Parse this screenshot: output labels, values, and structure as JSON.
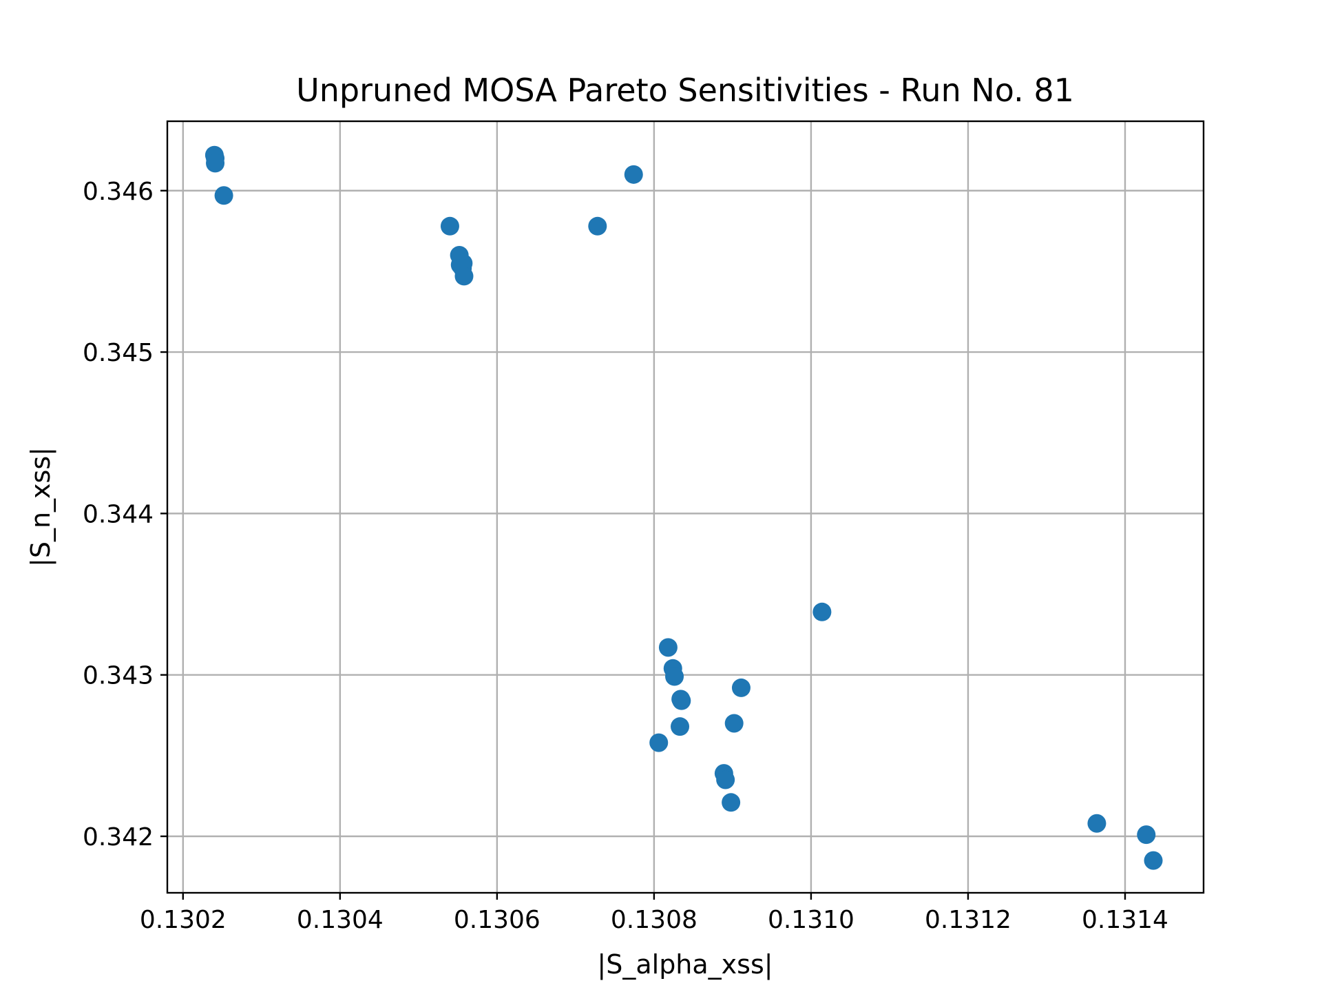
{
  "chart_data": {
    "type": "scatter",
    "title": "Unpruned MOSA Pareto Sensitivities - Run No. 81",
    "xlabel": "|S_alpha_xss|",
    "ylabel": "|S_n_xss|",
    "xlim": [
      0.13018,
      0.1315
    ],
    "ylim": [
      0.34165,
      0.34643
    ],
    "xticks": [
      0.1302,
      0.1304,
      0.1306,
      0.1308,
      0.131,
      0.1312,
      0.1314
    ],
    "xtick_labels": [
      "0.1302",
      "0.1304",
      "0.1306",
      "0.1308",
      "0.1310",
      "0.1312",
      "0.1314"
    ],
    "yticks": [
      0.342,
      0.343,
      0.344,
      0.345,
      0.346
    ],
    "ytick_labels": [
      "0.342",
      "0.343",
      "0.344",
      "0.345",
      "0.346"
    ],
    "grid": true,
    "marker_color": "#1f77b4",
    "series": [
      {
        "x": [
          0.13024,
          0.130241,
          0.130241,
          0.130252,
          0.13054,
          0.130552,
          0.130553,
          0.130557,
          0.130556,
          0.130558,
          0.130728,
          0.130774,
          0.130806,
          0.130818,
          0.130824,
          0.130826,
          0.130834,
          0.130835,
          0.130833,
          0.130889,
          0.130891,
          0.130898,
          0.130902,
          0.130911,
          0.131014,
          0.131364,
          0.131427,
          0.131436
        ],
        "y": [
          0.34622,
          0.3462,
          0.34617,
          0.34597,
          0.34578,
          0.3456,
          0.34554,
          0.34555,
          0.34552,
          0.34547,
          0.34578,
          0.3461,
          0.34258,
          0.34317,
          0.34304,
          0.34299,
          0.34285,
          0.34284,
          0.34268,
          0.34239,
          0.34235,
          0.34221,
          0.3427,
          0.34292,
          0.34339,
          0.34208,
          0.34201,
          0.34185
        ]
      }
    ]
  }
}
